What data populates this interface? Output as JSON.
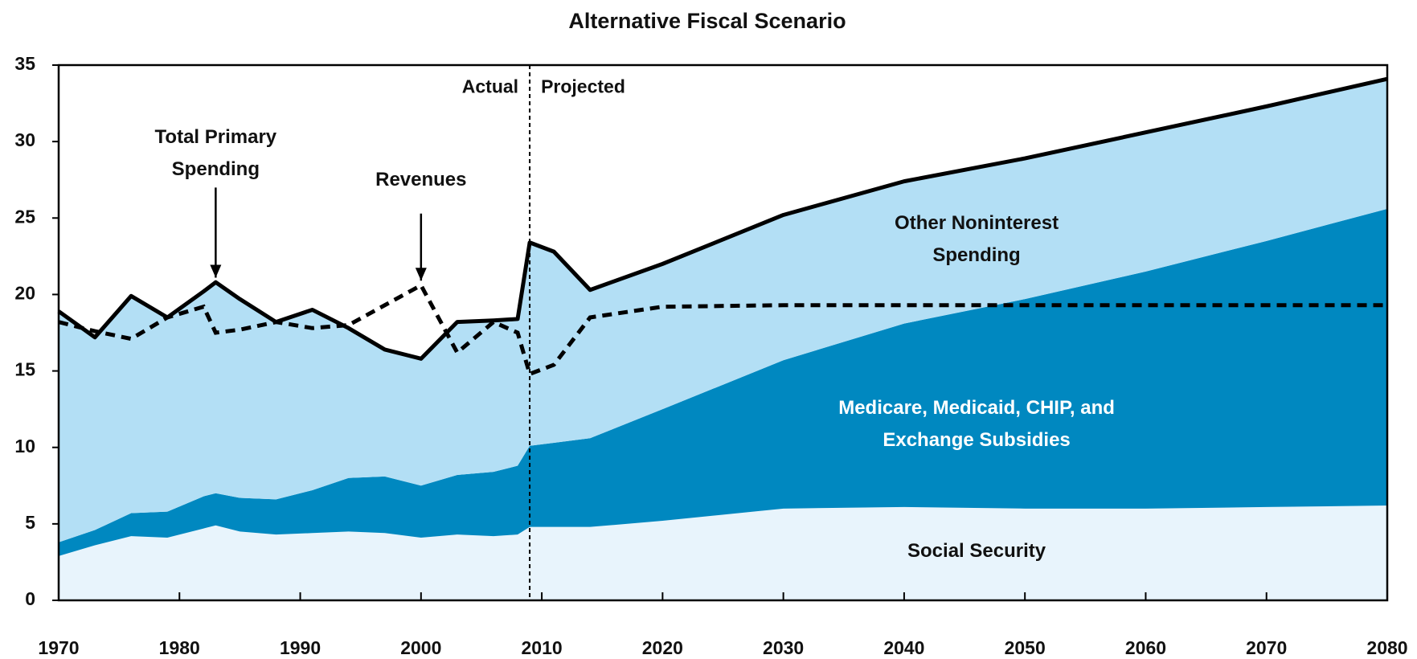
{
  "chart_data": {
    "type": "stacked_area",
    "title": "Alternative Fiscal Scenario",
    "x": [
      1970,
      1973,
      1976,
      1979,
      1982,
      1983,
      1985,
      1988,
      1991,
      1994,
      1997,
      2000,
      2003,
      2006,
      2008,
      2009,
      2011,
      2014,
      2020,
      2030,
      2040,
      2050,
      2060,
      2070,
      2080
    ],
    "series": [
      {
        "name": "Social Security",
        "color": "#e8f4fc",
        "label_at": [
          2046,
          3.2
        ],
        "values": [
          2.9,
          3.6,
          4.2,
          4.1,
          4.7,
          4.9,
          4.5,
          4.3,
          4.4,
          4.5,
          4.4,
          4.1,
          4.3,
          4.2,
          4.3,
          4.8,
          4.8,
          4.8,
          5.2,
          6.0,
          6.1,
          6.0,
          6.0,
          6.1,
          6.2
        ]
      },
      {
        "name": "Medicare, Medicaid, CHIP, and Exchange Subsidies",
        "color": "#0088c0",
        "label_color": "#ffffff",
        "label_at": [
          2046,
          11.5
        ],
        "values": [
          0.9,
          1.0,
          1.5,
          1.7,
          2.1,
          2.1,
          2.2,
          2.3,
          2.8,
          3.5,
          3.7,
          3.4,
          3.9,
          4.2,
          4.5,
          5.3,
          5.5,
          5.8,
          7.3,
          9.7,
          12.0,
          13.7,
          15.5,
          17.4,
          19.4
        ]
      },
      {
        "name": "Other Noninterest Spending",
        "color": "#b3dff5",
        "label_at": [
          2046,
          23.6
        ],
        "values": [
          15.1,
          12.6,
          14.2,
          12.7,
          13.4,
          13.8,
          13.0,
          11.6,
          11.8,
          9.8,
          8.3,
          8.3,
          10.0,
          9.9,
          9.6,
          13.3,
          12.5,
          9.7,
          9.5,
          9.5,
          9.3,
          9.2,
          9.1,
          8.8,
          8.5
        ]
      }
    ],
    "line": {
      "name": "Revenues",
      "color": "#000000",
      "dashed": true,
      "label_at": [
        2000,
        27.5
      ],
      "arrow_to": [
        2000,
        20.9
      ],
      "values": [
        18.2,
        17.6,
        17.1,
        18.5,
        19.2,
        17.5,
        17.7,
        18.2,
        17.8,
        18.0,
        19.3,
        20.6,
        16.2,
        18.2,
        17.5,
        14.8,
        15.4,
        18.5,
        19.2,
        19.3,
        19.3,
        19.3,
        19.3,
        19.3,
        19.3
      ]
    },
    "total_label": {
      "text": "Total Primary Spending",
      "label_at": [
        1983,
        29.2
      ],
      "arrow_to": [
        1983,
        21.1
      ]
    },
    "divider": {
      "x": 2009,
      "left_label": "Actual",
      "right_label": "Projected",
      "label_y": 33.5
    },
    "xlim": [
      1970,
      2080
    ],
    "xticks": [
      1970,
      1980,
      1990,
      2000,
      2010,
      2020,
      2030,
      2040,
      2050,
      2060,
      2070,
      2080
    ],
    "ylim": [
      0,
      35
    ],
    "yticks": [
      0,
      5,
      10,
      15,
      20,
      25,
      30,
      35
    ]
  }
}
